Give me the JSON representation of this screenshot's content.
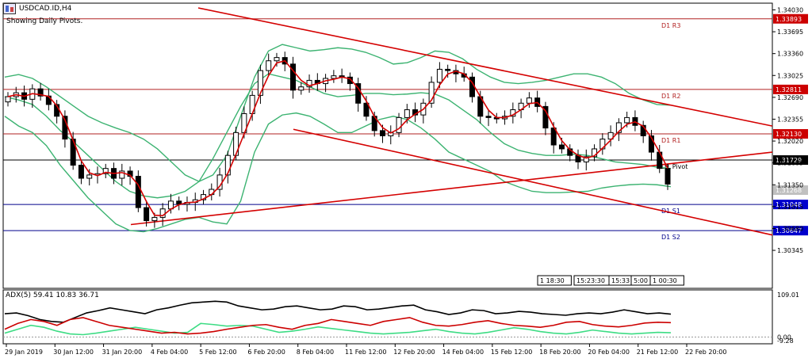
{
  "header": {
    "symbol_title": "USDCAD.ID,H4",
    "subtitle": "Showing Daily Pivots."
  },
  "indicator": {
    "label": "ADX(5) 59.41 10.83 36.71"
  },
  "time_badges": [
    "1 18:30",
    "15:23:30",
    "15:33",
    "5:00",
    "1 00:30"
  ],
  "colors": {
    "background": "#ffffff",
    "candle": "#000000",
    "bollinger": "#3cb371",
    "moving_average": "#d40000",
    "trendline": "#d40000",
    "pivot_resistance": "#b22222",
    "pivot_line": "#000000",
    "pivot_support": "#00008b",
    "adx": "#000000",
    "plus_di": "#3ddc84",
    "minus_di": "#cc0000",
    "price_tag_red": "#cc0000",
    "price_tag_blue": "#0000cc",
    "price_tag_black": "#000000",
    "current_price_tag": "#c0c0c0"
  },
  "chart_data": [
    {
      "type": "candlestick",
      "symbol": "USDCAD.ID",
      "timeframe": "H4",
      "ylim": [
        1.302,
        1.3406
      ],
      "y_ticks": [
        "1.34030",
        "1.33695",
        "1.33360",
        "1.33025",
        "1.32690",
        "1.32355",
        "1.32020",
        "1.31685",
        "1.31350",
        "1.31015",
        "1.30680",
        "1.30345"
      ],
      "x_ticks": [
        "29 Jan 2019",
        "30 Jan 12:00",
        "31 Jan 20:00",
        "4 Feb 04:00",
        "5 Feb 12:00",
        "6 Feb 20:00",
        "8 Feb 04:00",
        "11 Feb 12:00",
        "12 Feb 20:00",
        "14 Feb 04:00",
        "15 Feb 12:00",
        "18 Feb 20:00",
        "20 Feb 04:00",
        "21 Feb 12:00",
        "22 Feb 20:00"
      ],
      "current_price": "1.31268",
      "pivots": [
        {
          "name": "D1 R3",
          "value": 1.33893,
          "label": "1.33893",
          "kind": "resistance"
        },
        {
          "name": "D1 R2",
          "value": 1.32811,
          "label": "1.32811",
          "kind": "resistance"
        },
        {
          "name": "D1 R1",
          "value": 1.3213,
          "label": "1.32130",
          "kind": "resistance"
        },
        {
          "name": "D1 Pivot",
          "value": 1.31729,
          "label": "1.31729",
          "kind": "pivot"
        },
        {
          "name": "D1 S1",
          "value": 1.31048,
          "label": "1.31048",
          "kind": "support"
        },
        {
          "name": "D1 S2",
          "value": 1.30647,
          "label": "1.30647",
          "kind": "support"
        }
      ],
      "closes": [
        1.327,
        1.3276,
        1.3266,
        1.3282,
        1.3271,
        1.3258,
        1.324,
        1.3205,
        1.3165,
        1.3145,
        1.315,
        1.3152,
        1.316,
        1.3145,
        1.3156,
        1.3148,
        1.31,
        1.308,
        1.3085,
        1.3098,
        1.311,
        1.3105,
        1.3108,
        1.3112,
        1.312,
        1.3128,
        1.315,
        1.318,
        1.3215,
        1.3244,
        1.3272,
        1.331,
        1.3325,
        1.333,
        1.332,
        1.328,
        1.3285,
        1.3295,
        1.329,
        1.3298,
        1.3302,
        1.33,
        1.329,
        1.326,
        1.324,
        1.3218,
        1.321,
        1.3215,
        1.3238,
        1.325,
        1.3242,
        1.326,
        1.3292,
        1.3312,
        1.331,
        1.3305,
        1.33,
        1.327,
        1.324,
        1.3238,
        1.3236,
        1.324,
        1.325,
        1.326,
        1.3268,
        1.3255,
        1.3222,
        1.3196,
        1.319,
        1.318,
        1.317,
        1.3178,
        1.319,
        1.3205,
        1.3215,
        1.323,
        1.3238,
        1.3226,
        1.321,
        1.3185,
        1.316,
        1.3136
      ],
      "bollinger_upper": [
        1.33,
        1.3304,
        1.3298,
        1.3285,
        1.327,
        1.3255,
        1.324,
        1.323,
        1.3222,
        1.3215,
        1.3205,
        1.319,
        1.317,
        1.315,
        1.314,
        1.315,
        1.318,
        1.324,
        1.33,
        1.334,
        1.335,
        1.3345,
        1.334,
        1.3342,
        1.3345,
        1.3343,
        1.3338,
        1.333,
        1.332,
        1.3322,
        1.333,
        1.334,
        1.3338,
        1.3328,
        1.3312,
        1.33,
        1.3292,
        1.329,
        1.3292,
        1.3295,
        1.33,
        1.3305,
        1.3305,
        1.33,
        1.329,
        1.3275,
        1.3265,
        1.3258,
        1.3257
      ],
      "bollinger_mid": [
        1.327,
        1.3265,
        1.3258,
        1.324,
        1.3218,
        1.32,
        1.318,
        1.316,
        1.314,
        1.3125,
        1.3118,
        1.3115,
        1.3118,
        1.3125,
        1.314,
        1.3175,
        1.3215,
        1.3255,
        1.329,
        1.3305,
        1.33,
        1.3295,
        1.3285,
        1.3275,
        1.327,
        1.3272,
        1.3275,
        1.3275,
        1.3273,
        1.3274,
        1.3276,
        1.3274,
        1.3265,
        1.325,
        1.3235,
        1.3215,
        1.3198,
        1.3188,
        1.3183,
        1.318,
        1.318,
        1.3182,
        1.318,
        1.3175,
        1.317,
        1.3168,
        1.3166,
        1.3162,
        1.316
      ],
      "bollinger_lower": [
        1.324,
        1.3225,
        1.3215,
        1.3195,
        1.3165,
        1.314,
        1.3115,
        1.3095,
        1.3075,
        1.3065,
        1.3063,
        1.3068,
        1.3075,
        1.3082,
        1.3085,
        1.3078,
        1.3075,
        1.311,
        1.3185,
        1.3228,
        1.3242,
        1.3245,
        1.324,
        1.3228,
        1.3215,
        1.3215,
        1.3225,
        1.3235,
        1.324,
        1.3235,
        1.3222,
        1.3205,
        1.3185,
        1.3175,
        1.3165,
        1.3155,
        1.314,
        1.3132,
        1.3125,
        1.3123,
        1.3123,
        1.3124,
        1.3125,
        1.313,
        1.3133,
        1.3135,
        1.3136,
        1.3135,
        1.3132
      ],
      "adx_panel": {
        "label": "ADX(5)",
        "y_ticks": [
          "109.01",
          "0.00",
          "-9.28"
        ],
        "adx": [
          60,
          62,
          55,
          45,
          40,
          38,
          50,
          62,
          68,
          75,
          70,
          65,
          60,
          70,
          75,
          82,
          88,
          90,
          92,
          90,
          80,
          75,
          70,
          72,
          78,
          80,
          75,
          70,
          72,
          80,
          78,
          70,
          72,
          76,
          80,
          82,
          70,
          65,
          58,
          62,
          70,
          68,
          60,
          62,
          66,
          64,
          60,
          58,
          56,
          60,
          62,
          60,
          64,
          70,
          65,
          60,
          62,
          59
        ],
        "plus_di": [
          10,
          20,
          30,
          25,
          15,
          8,
          6,
          10,
          15,
          20,
          25,
          20,
          15,
          10,
          12,
          35,
          32,
          28,
          30,
          28,
          20,
          12,
          15,
          20,
          26,
          22,
          18,
          14,
          10,
          8,
          10,
          12,
          16,
          20,
          14,
          10,
          8,
          12,
          18,
          24,
          20,
          14,
          10,
          8,
          12,
          18,
          14,
          10,
          8,
          10,
          12,
          11
        ],
        "minus_di": [
          20,
          35,
          45,
          40,
          30,
          45,
          50,
          40,
          30,
          25,
          20,
          15,
          10,
          12,
          8,
          10,
          14,
          20,
          25,
          30,
          32,
          25,
          20,
          30,
          35,
          45,
          40,
          35,
          30,
          40,
          45,
          50,
          38,
          30,
          28,
          32,
          38,
          42,
          35,
          30,
          28,
          25,
          30,
          38,
          40,
          32,
          28,
          26,
          30,
          36,
          38,
          37
        ],
        "ylim": [
          -9.28,
          109.01
        ]
      }
    }
  ]
}
